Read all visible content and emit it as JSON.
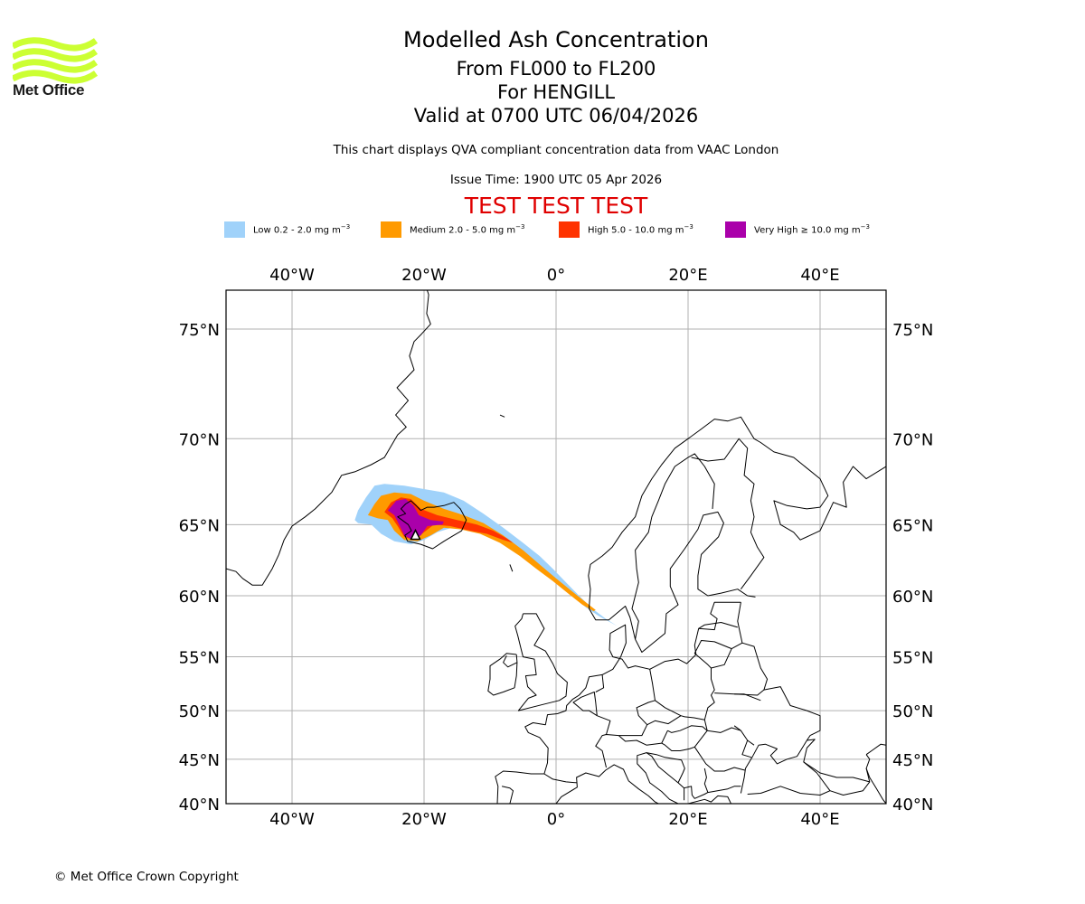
{
  "logo": {
    "text": "Met Office",
    "color": "#ccff33"
  },
  "header": {
    "title": "Modelled Ash Concentration",
    "levels": "From FL000 to FL200",
    "volcano": "For HENGILL",
    "valid": "Valid at 0700 UTC 06/04/2026",
    "subtitle": "This chart displays QVA compliant concentration data from VAAC London",
    "issue_time": "Issue Time: 1900 UTC 05 Apr 2026",
    "test_banner": "TEST TEST TEST",
    "test_color": "#e00000"
  },
  "legend": [
    {
      "label": "Low 0.2 - 2.0 mg m",
      "unit_exp": "−3",
      "color": "#a0d2fa"
    },
    {
      "label": "Medium 2.0 - 5.0 mg m",
      "unit_exp": "−3",
      "color": "#ff9a00"
    },
    {
      "label": "High 5.0 - 10.0 mg m",
      "unit_exp": "−3",
      "color": "#ff3300"
    },
    {
      "label": "Very High  ≥  10.0 mg m",
      "unit_exp": "−3",
      "color": "#aa00aa"
    }
  ],
  "footer": {
    "copyright": "© Met Office Crown Copyright"
  },
  "chart_data": {
    "type": "map",
    "projection": "mercator",
    "title": "Modelled Ash Concentration",
    "lon_range": [
      -50,
      50
    ],
    "lat_range": [
      40,
      77
    ],
    "grid": true,
    "lon_ticks": [
      {
        "value": -40,
        "label": "40°W"
      },
      {
        "value": -20,
        "label": "20°W"
      },
      {
        "value": 0,
        "label": "0°"
      },
      {
        "value": 20,
        "label": "20°E"
      },
      {
        "value": 40,
        "label": "40°E"
      }
    ],
    "lat_ticks": [
      {
        "value": 75,
        "label": "75°N"
      },
      {
        "value": 70,
        "label": "70°N"
      },
      {
        "value": 65,
        "label": "65°N"
      },
      {
        "value": 60,
        "label": "60°N"
      },
      {
        "value": 55,
        "label": "55°N"
      },
      {
        "value": 50,
        "label": "50°N"
      },
      {
        "value": 45,
        "label": "45°N"
      },
      {
        "value": 40,
        "label": "40°N"
      }
    ],
    "volcano_location": {
      "name": "HENGILL",
      "lon": -21.3,
      "lat": 64.1
    },
    "ash_layers": [
      {
        "level": "Low",
        "color": "#a0d2fa",
        "polygon": [
          [
            -30.5,
            65.3
          ],
          [
            -30,
            65.9
          ],
          [
            -28.8,
            66.7
          ],
          [
            -27.5,
            67.4
          ],
          [
            -26,
            67.5
          ],
          [
            -23,
            67.4
          ],
          [
            -20,
            67.2
          ],
          [
            -17,
            67.0
          ],
          [
            -14,
            66.5
          ],
          [
            -11,
            65.7
          ],
          [
            -8,
            64.8
          ],
          [
            -5,
            63.8
          ],
          [
            -2.5,
            62.9
          ],
          [
            -0.5,
            62.0
          ],
          [
            1.5,
            61.0
          ],
          [
            3.5,
            60.0
          ],
          [
            5.5,
            59.0
          ],
          [
            7.5,
            58.2
          ],
          [
            9.3,
            57.6
          ],
          [
            8.6,
            57.8
          ],
          [
            6.5,
            58.4
          ],
          [
            4.5,
            59.1
          ],
          [
            2.5,
            60.0
          ],
          [
            0.5,
            60.9
          ],
          [
            -1.5,
            61.8
          ],
          [
            -3.5,
            62.6
          ],
          [
            -6,
            63.4
          ],
          [
            -9,
            64.2
          ],
          [
            -12,
            64.7
          ],
          [
            -15,
            64.9
          ],
          [
            -18,
            64.5
          ],
          [
            -20,
            64.0
          ],
          [
            -22,
            63.7
          ],
          [
            -24.5,
            63.9
          ],
          [
            -26.5,
            64.4
          ],
          [
            -28,
            65.0
          ],
          [
            -30,
            65.1
          ]
        ]
      },
      {
        "level": "Medium",
        "color": "#ff9a00",
        "polygon": [
          [
            -28.5,
            65.6
          ],
          [
            -27.5,
            66.3
          ],
          [
            -26.5,
            66.8
          ],
          [
            -24.5,
            67.0
          ],
          [
            -22,
            66.9
          ],
          [
            -20,
            66.5
          ],
          [
            -17,
            66.0
          ],
          [
            -14,
            65.6
          ],
          [
            -11,
            65.1
          ],
          [
            -8,
            64.3
          ],
          [
            -5,
            63.3
          ],
          [
            -2.5,
            62.3
          ],
          [
            0,
            61.3
          ],
          [
            2.5,
            60.3
          ],
          [
            4.5,
            59.5
          ],
          [
            6,
            58.9
          ],
          [
            5.7,
            58.8
          ],
          [
            4,
            59.3
          ],
          [
            2,
            60.1
          ],
          [
            -0.5,
            61.1
          ],
          [
            -3,
            62.0
          ],
          [
            -5.5,
            62.9
          ],
          [
            -8.5,
            63.8
          ],
          [
            -11.5,
            64.4
          ],
          [
            -14.5,
            64.7
          ],
          [
            -17,
            64.8
          ],
          [
            -19,
            64.3
          ],
          [
            -21,
            63.9
          ],
          [
            -23,
            64.0
          ],
          [
            -24.5,
            64.6
          ],
          [
            -25.5,
            65.3
          ],
          [
            -27,
            65.4
          ]
        ]
      },
      {
        "level": "High",
        "color": "#ff3300",
        "polygon": [
          [
            -26,
            65.8
          ],
          [
            -25,
            66.4
          ],
          [
            -23.5,
            66.7
          ],
          [
            -22,
            66.6
          ],
          [
            -20.5,
            66.0
          ],
          [
            -18,
            65.6
          ],
          [
            -15,
            65.3
          ],
          [
            -12,
            65.0
          ],
          [
            -9.5,
            64.6
          ],
          [
            -7.5,
            64.1
          ],
          [
            -6.5,
            63.8
          ],
          [
            -8,
            64.0
          ],
          [
            -10.5,
            64.4
          ],
          [
            -13,
            64.6
          ],
          [
            -16,
            64.9
          ],
          [
            -18.5,
            65.0
          ],
          [
            -20,
            64.5
          ],
          [
            -21.5,
            64.0
          ],
          [
            -23,
            64.2
          ],
          [
            -24,
            64.9
          ],
          [
            -24.8,
            65.4
          ]
        ]
      },
      {
        "level": "Very High",
        "color": "#aa00aa",
        "polygon": [
          [
            -25.5,
            65.9
          ],
          [
            -24.2,
            66.5
          ],
          [
            -22.8,
            66.6
          ],
          [
            -21.6,
            66.2
          ],
          [
            -20.8,
            65.6
          ],
          [
            -19,
            65.3
          ],
          [
            -17,
            65.2
          ],
          [
            -17.2,
            65.0
          ],
          [
            -19.5,
            64.9
          ],
          [
            -20.5,
            64.3
          ],
          [
            -21.8,
            64.0
          ],
          [
            -23,
            64.3
          ],
          [
            -23.8,
            65.0
          ],
          [
            -24.5,
            65.6
          ]
        ]
      }
    ]
  }
}
